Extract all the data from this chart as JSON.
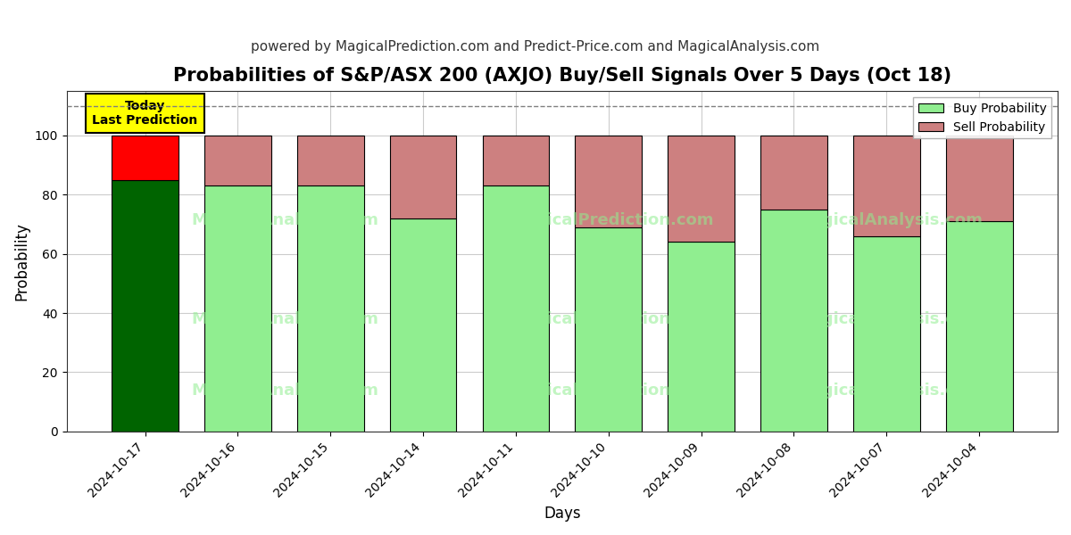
{
  "title": "Probabilities of S&P/ASX 200 (AXJO) Buy/Sell Signals Over 5 Days (Oct 18)",
  "subtitle": "powered by MagicalPrediction.com and Predict-Price.com and MagicalAnalysis.com",
  "xlabel": "Days",
  "ylabel": "Probability",
  "dates": [
    "2024-10-17",
    "2024-10-16",
    "2024-10-15",
    "2024-10-14",
    "2024-10-11",
    "2024-10-10",
    "2024-10-09",
    "2024-10-08",
    "2024-10-07",
    "2024-10-04"
  ],
  "buy_values": [
    85,
    83,
    83,
    72,
    83,
    69,
    64,
    75,
    66,
    71
  ],
  "sell_values": [
    15,
    17,
    17,
    28,
    17,
    31,
    36,
    25,
    34,
    29
  ],
  "today_bar_buy_color": "#006400",
  "today_bar_sell_color": "#FF0000",
  "other_bar_buy_color": "#90EE90",
  "other_bar_sell_color": "#CD8080",
  "bar_edge_color": "#000000",
  "legend_buy_color": "#90EE90",
  "legend_sell_color": "#CD8080",
  "ylim": [
    0,
    115
  ],
  "dashed_line_y": 110,
  "today_label": "Today\nLast Prediction",
  "background_color": "#ffffff",
  "grid_color": "#cccccc",
  "title_fontsize": 15,
  "subtitle_fontsize": 11,
  "axis_label_fontsize": 12,
  "tick_fontsize": 10,
  "bar_width": 0.72
}
